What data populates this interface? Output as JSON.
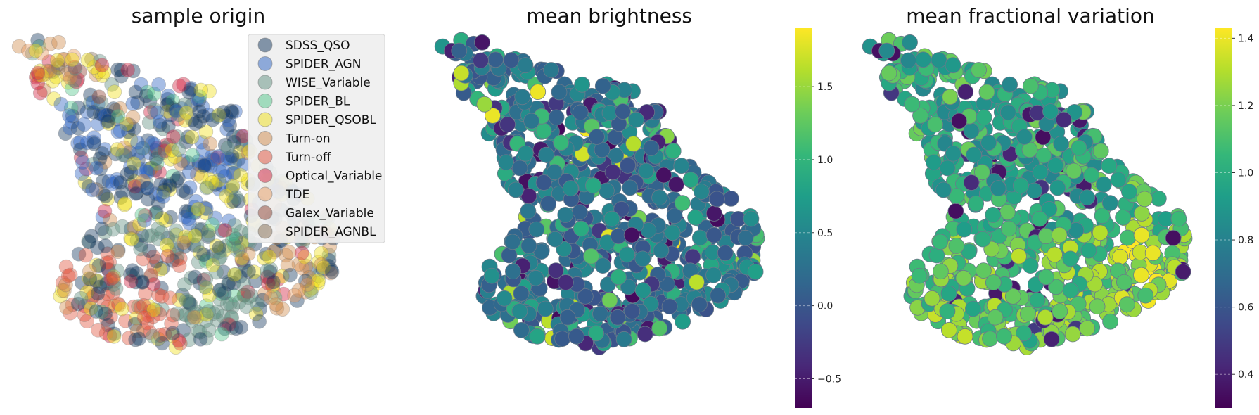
{
  "chart_data": [
    {
      "type": "scatter",
      "title": "sample origin",
      "axes_visible": false,
      "legend_placement": "upper-right",
      "series": [
        {
          "name": "SDSS_QSO",
          "color": "#12365e"
        },
        {
          "name": "SPIDER_AGN",
          "color": "#2a62c2"
        },
        {
          "name": "WISE_Variable",
          "color": "#5f8f80"
        },
        {
          "name": "SPIDER_BL",
          "color": "#52c58a"
        },
        {
          "name": "SPIDER_QSOBL",
          "color": "#f0e018"
        },
        {
          "name": "Turn-on",
          "color": "#cf8a4a"
        },
        {
          "name": "Turn-off",
          "color": "#e0503a"
        },
        {
          "name": "Optical_Variable",
          "color": "#d2203e"
        },
        {
          "name": "TDE",
          "color": "#e6995e"
        },
        {
          "name": "Galex_Variable",
          "color": "#8c4030"
        },
        {
          "name": "SPIDER_AGNBL",
          "color": "#866b4f"
        }
      ]
    },
    {
      "type": "scatter",
      "title": "mean brightness",
      "axes_visible": false,
      "colormap": "viridis",
      "colorbar": {
        "min": -0.7,
        "max": 1.9,
        "ticks": [
          "1.5",
          "1.0",
          "0.5",
          "0.0",
          "−0.5"
        ]
      }
    },
    {
      "type": "scatter",
      "title": "mean fractional variation",
      "axes_visible": false,
      "colormap": "viridis",
      "colorbar": {
        "min": 0.3,
        "max": 1.43,
        "ticks": [
          "1.4",
          "1.2",
          "1.0",
          "0.8",
          "0.6",
          "0.4"
        ]
      }
    }
  ]
}
